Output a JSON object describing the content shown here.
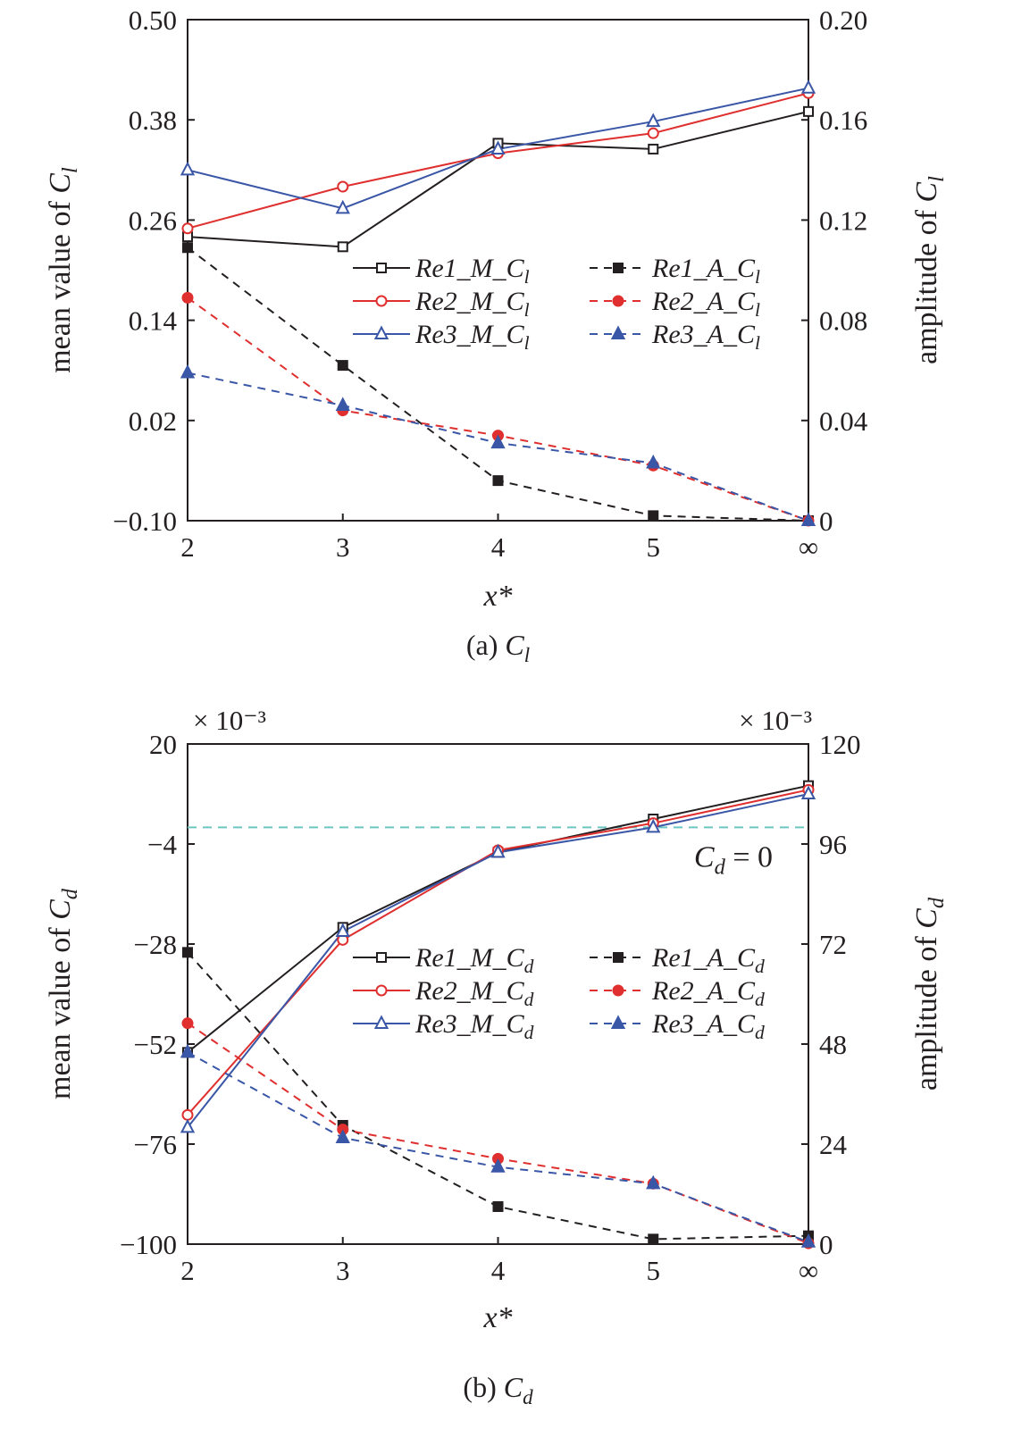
{
  "chart_data": [
    {
      "type": "line",
      "caption_prefix": "(a) ",
      "caption_symbol": "C",
      "caption_sub": "l",
      "xlabel": "x*",
      "x_categories": [
        "2",
        "3",
        "4",
        "5",
        "∞"
      ],
      "y_left": {
        "label_prefix": "mean value of ",
        "label_symbol": "C",
        "label_sub": "l",
        "ylim": [
          -0.1,
          0.5
        ],
        "ticks": [
          -0.1,
          0.02,
          0.14,
          0.26,
          0.38,
          0.5
        ],
        "tick_labels": [
          "−0.10",
          "0.02",
          "0.14",
          "0.26",
          "0.38",
          "0.50"
        ],
        "multiplier": ""
      },
      "y_right": {
        "label_prefix": "amplitude of ",
        "label_symbol": "C",
        "label_sub": "l",
        "ylim": [
          0,
          0.2
        ],
        "ticks": [
          0,
          0.04,
          0.08,
          0.12,
          0.16,
          0.2
        ],
        "tick_labels": [
          "0",
          "0.04",
          "0.08",
          "0.12",
          "0.16",
          "0.20"
        ],
        "multiplier": ""
      },
      "series": [
        {
          "name": "Re1_M_",
          "sub": "l",
          "axis": "left",
          "color": "#231f20",
          "marker": "square",
          "filled": false,
          "dashed": false,
          "values": [
            0.24,
            0.228,
            0.352,
            0.345,
            0.39
          ]
        },
        {
          "name": "Re2_M_",
          "sub": "l",
          "axis": "left",
          "color": "#e02f2f",
          "marker": "circle",
          "filled": false,
          "dashed": false,
          "values": [
            0.25,
            0.3,
            0.34,
            0.364,
            0.412
          ]
        },
        {
          "name": "Re3_M_",
          "sub": "l",
          "axis": "left",
          "color": "#3a56a6",
          "marker": "triangle",
          "filled": false,
          "dashed": false,
          "values": [
            0.32,
            0.274,
            0.345,
            0.378,
            0.418
          ]
        },
        {
          "name": "Re1_A_",
          "sub": "l",
          "axis": "right",
          "color": "#231f20",
          "marker": "square",
          "filled": true,
          "dashed": true,
          "values": [
            0.109,
            0.062,
            0.016,
            0.002,
            0.0
          ]
        },
        {
          "name": "Re2_A_",
          "sub": "l",
          "axis": "right",
          "color": "#e02f2f",
          "marker": "circle",
          "filled": true,
          "dashed": true,
          "values": [
            0.089,
            0.044,
            0.034,
            0.022,
            0.0
          ]
        },
        {
          "name": "Re3_A_",
          "sub": "l",
          "axis": "right",
          "color": "#3a56a6",
          "marker": "triangle",
          "filled": true,
          "dashed": true,
          "values": [
            0.059,
            0.046,
            0.031,
            0.023,
            0.0
          ]
        }
      ],
      "legend_position": "center-right",
      "reference_line": null
    },
    {
      "type": "line",
      "caption_prefix": "(b) ",
      "caption_symbol": "C",
      "caption_sub": "d",
      "xlabel": "x*",
      "x_categories": [
        "2",
        "3",
        "4",
        "5",
        "∞"
      ],
      "y_left": {
        "label_prefix": "mean value of ",
        "label_symbol": "C",
        "label_sub": "d",
        "ylim": [
          -100,
          20
        ],
        "ticks": [
          -100,
          -76,
          -52,
          -28,
          -4,
          20
        ],
        "tick_labels": [
          "−100",
          "−76",
          "−52",
          "−28",
          "−4",
          "20"
        ],
        "multiplier": "× 10⁻³"
      },
      "y_right": {
        "label_prefix": "amplitude of ",
        "label_symbol": "C",
        "label_sub": "d",
        "ylim": [
          0,
          120
        ],
        "ticks": [
          0,
          24,
          48,
          72,
          96,
          120
        ],
        "tick_labels": [
          "0",
          "24",
          "48",
          "72",
          "96",
          "120"
        ],
        "multiplier": "× 10⁻³"
      },
      "series": [
        {
          "name": "Re1_M_",
          "sub": "d",
          "axis": "left",
          "color": "#231f20",
          "marker": "square",
          "filled": false,
          "dashed": false,
          "values": [
            -54.0,
            -24.0,
            -6.0,
            2.0,
            10.0
          ]
        },
        {
          "name": "Re2_M_",
          "sub": "d",
          "axis": "left",
          "color": "#e02f2f",
          "marker": "circle",
          "filled": false,
          "dashed": false,
          "values": [
            -69.0,
            -27.0,
            -5.5,
            1.0,
            9.0
          ]
        },
        {
          "name": "Re3_M_",
          "sub": "d",
          "axis": "left",
          "color": "#3a56a6",
          "marker": "triangle",
          "filled": false,
          "dashed": false,
          "values": [
            -72.0,
            -25.0,
            -6.0,
            0.0,
            8.0
          ]
        },
        {
          "name": "Re1_A_",
          "sub": "d",
          "axis": "right",
          "color": "#231f20",
          "marker": "square",
          "filled": true,
          "dashed": true,
          "values": [
            70.0,
            28.5,
            9.0,
            1.2,
            2.0
          ]
        },
        {
          "name": "Re2_A_",
          "sub": "d",
          "axis": "right",
          "color": "#e02f2f",
          "marker": "circle",
          "filled": true,
          "dashed": true,
          "values": [
            53.0,
            27.5,
            20.5,
            14.5,
            0.2
          ]
        },
        {
          "name": "Re3_A_",
          "sub": "d",
          "axis": "right",
          "color": "#3a56a6",
          "marker": "triangle",
          "filled": true,
          "dashed": true,
          "values": [
            46.0,
            25.5,
            18.5,
            14.5,
            0.5
          ]
        }
      ],
      "legend_position": "center-right",
      "reference_line": {
        "axis": "left",
        "value": 0,
        "color": "#6cc6c0",
        "dashed": true,
        "label_symbol": "C",
        "label_sub": "d",
        "label_suffix": " = 0"
      }
    }
  ]
}
